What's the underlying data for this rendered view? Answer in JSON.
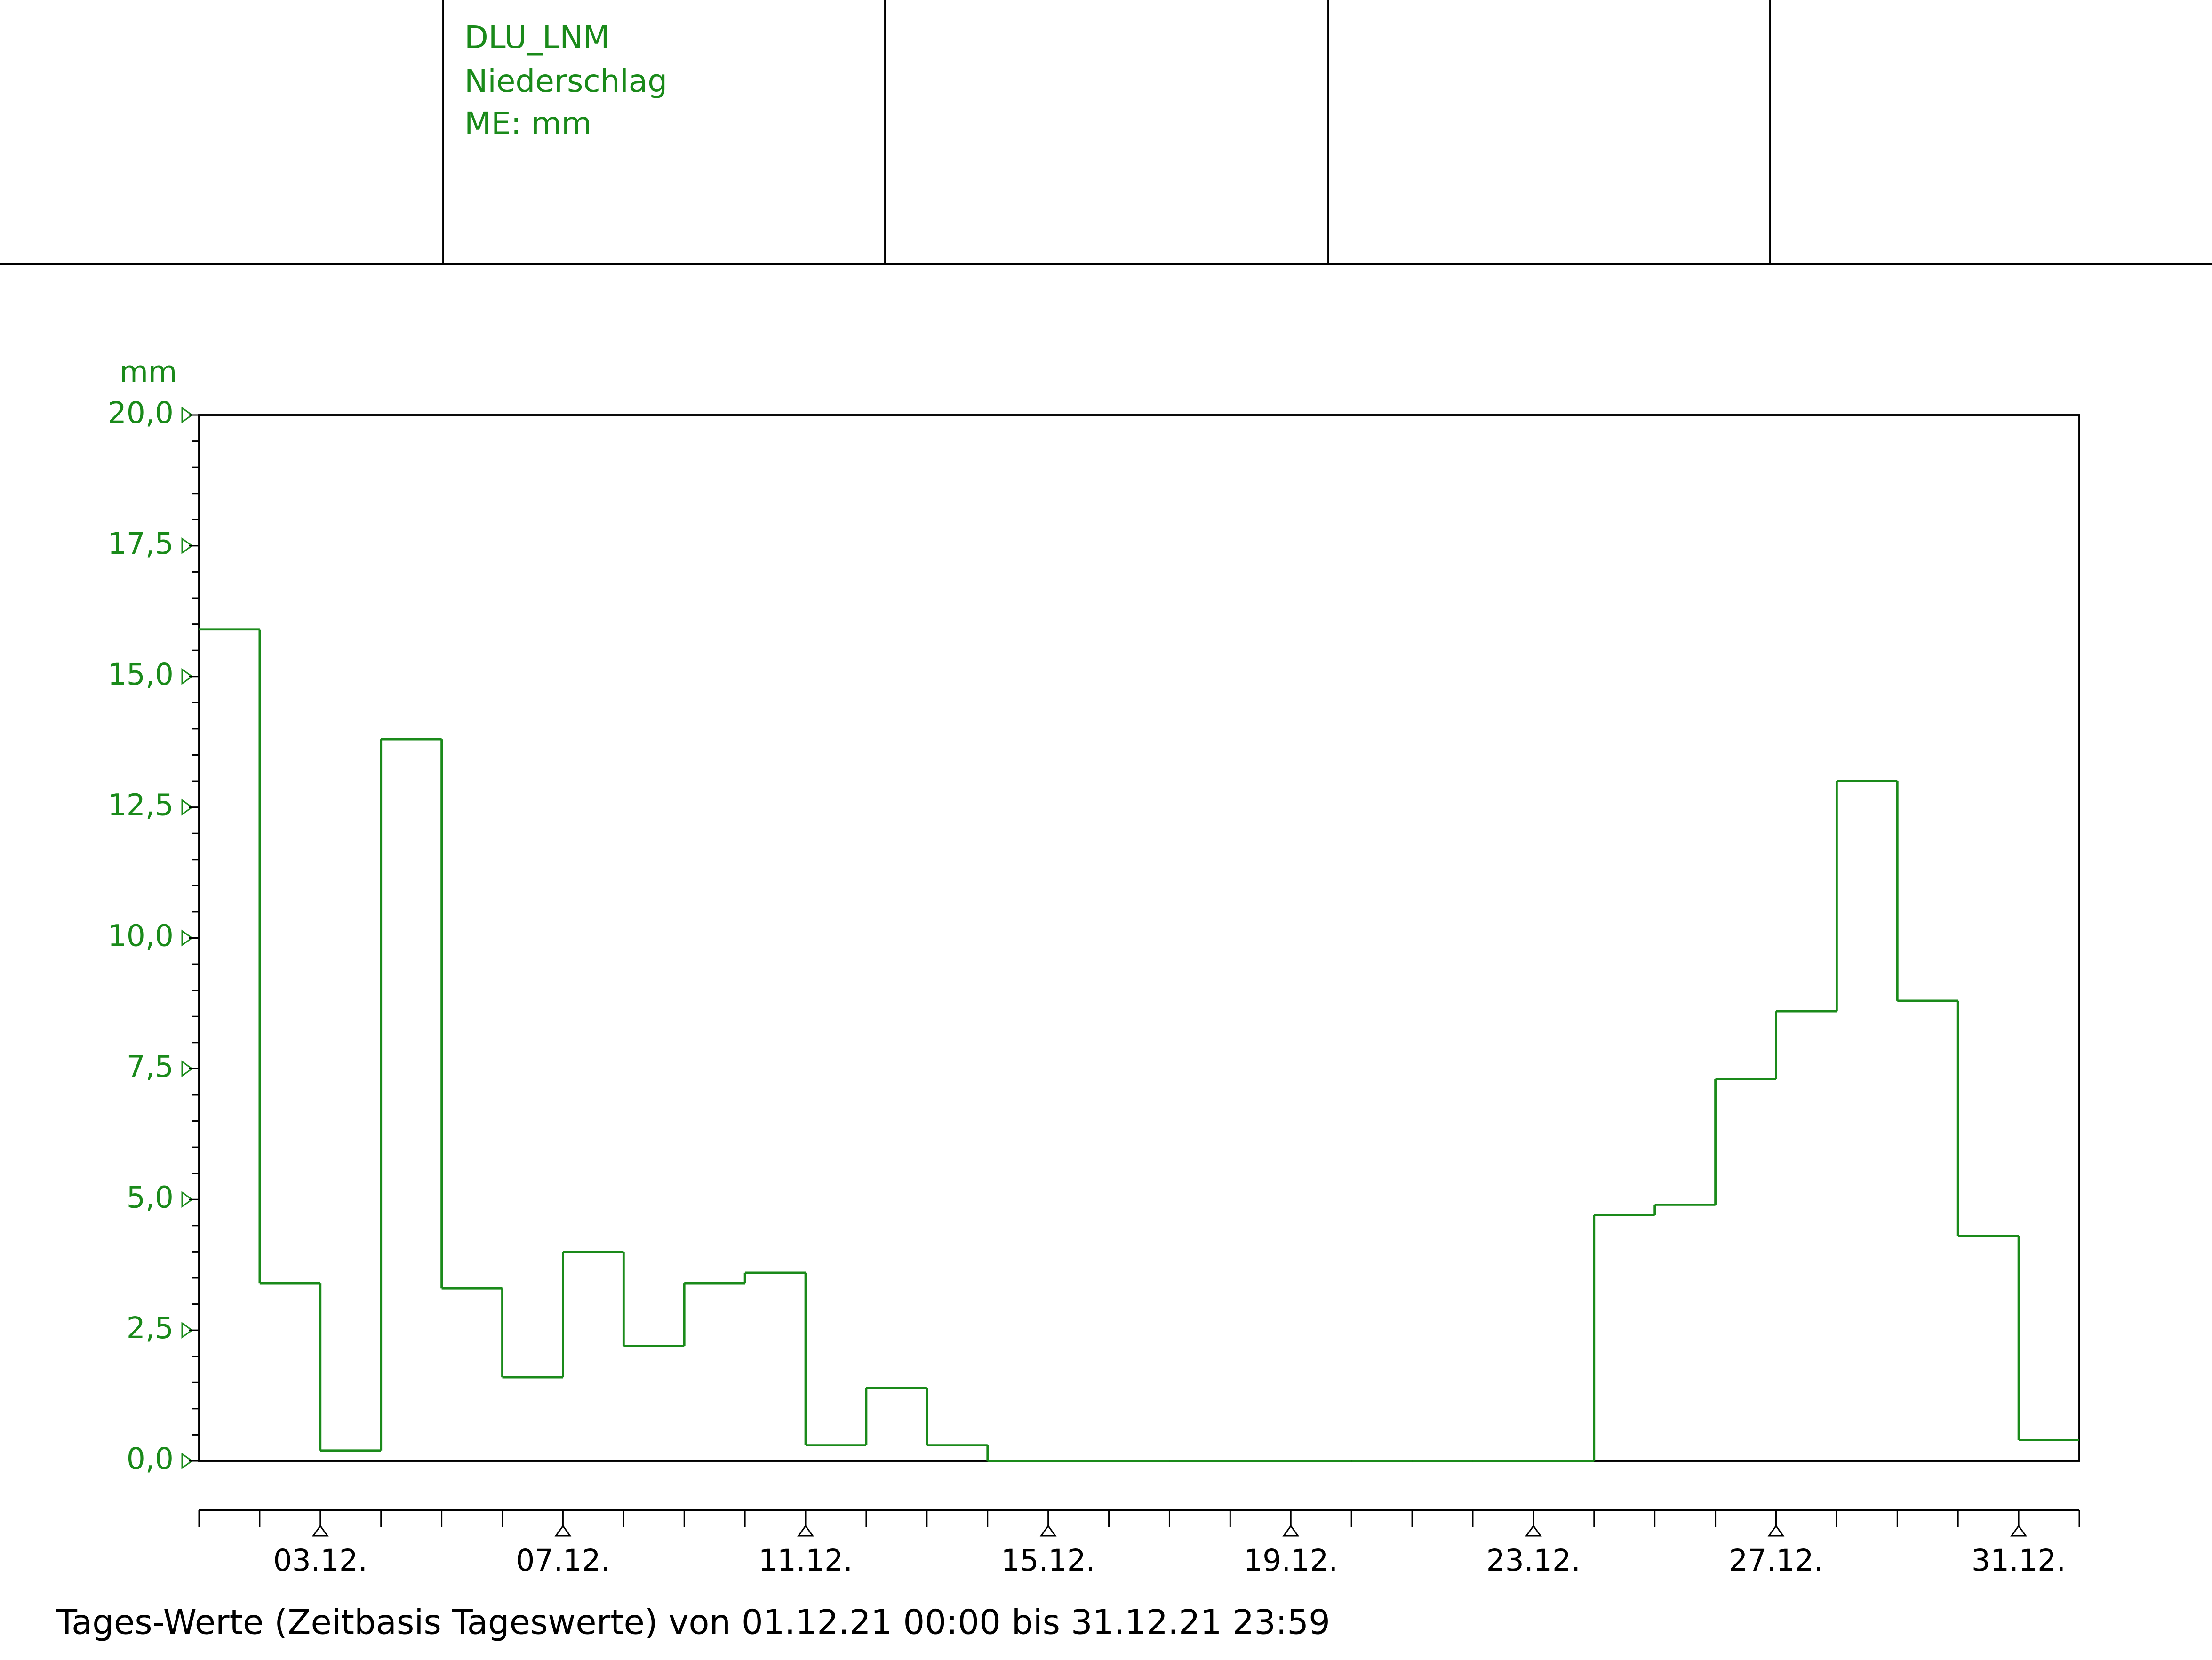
{
  "header": {
    "cells": [
      [
        "DLU_LNM",
        "Niederschlag",
        "ME: mm"
      ]
    ]
  },
  "chart_data": {
    "type": "step",
    "y_unit": "mm",
    "x": [
      "01.12.",
      "02.12.",
      "03.12.",
      "04.12.",
      "05.12.",
      "06.12.",
      "07.12.",
      "08.12.",
      "09.12.",
      "10.12.",
      "11.12.",
      "12.12.",
      "13.12.",
      "14.12.",
      "15.12.",
      "16.12.",
      "17.12.",
      "18.12.",
      "19.12.",
      "20.12.",
      "21.12.",
      "22.12.",
      "23.12.",
      "24.12.",
      "25.12.",
      "26.12.",
      "27.12.",
      "28.12.",
      "29.12.",
      "30.12.",
      "31.12."
    ],
    "series": [
      {
        "name": "Niederschlag",
        "color": "#1a8a1a",
        "values": [
          15.9,
          3.4,
          0.2,
          13.8,
          3.3,
          1.6,
          4.0,
          2.2,
          3.4,
          3.6,
          0.3,
          1.4,
          0.3,
          0,
          0,
          0,
          0,
          0,
          0,
          0,
          0,
          0,
          0,
          4.7,
          4.9,
          7.3,
          8.6,
          13.0,
          8.8,
          4.3,
          0.4
        ]
      }
    ],
    "ylim": [
      0,
      20
    ],
    "yticks": [
      {
        "value": 0,
        "label": "0,0"
      },
      {
        "value": 2.5,
        "label": "2,5"
      },
      {
        "value": 5,
        "label": "5,0"
      },
      {
        "value": 7.5,
        "label": "7,5"
      },
      {
        "value": 10,
        "label": "10,0"
      },
      {
        "value": 12.5,
        "label": "12,5"
      },
      {
        "value": 15,
        "label": "15,0"
      },
      {
        "value": 17.5,
        "label": "17,5"
      },
      {
        "value": 20,
        "label": "20,0"
      }
    ],
    "xticks": [
      "03.12.",
      "07.12.",
      "11.12.",
      "15.12.",
      "19.12.",
      "23.12.",
      "27.12.",
      "31.12."
    ],
    "footer": "Tages-Werte (Zeitbasis Tageswerte) von 01.12.21 00:00 bis 31.12.21 23:59"
  }
}
